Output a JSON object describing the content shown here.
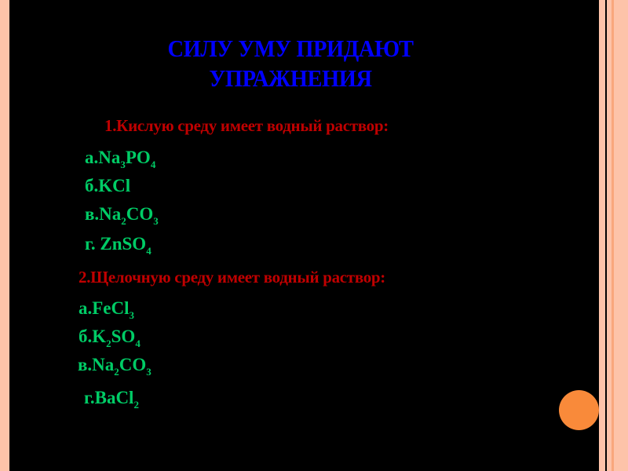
{
  "title": {
    "line1": "СИЛУ УМУ ПРИДАЮТ",
    "line2": "УПРАЖНЕНИЯ"
  },
  "question1": {
    "text": "1.Кислую среду имеет водный раствор:",
    "options": [
      {
        "prefix": "а.",
        "parts": [
          [
            "Na",
            ""
          ],
          [
            "3",
            "sub"
          ],
          [
            "PO",
            ""
          ],
          [
            "4",
            "sub"
          ]
        ]
      },
      {
        "prefix": "б.",
        "parts": [
          [
            "KCl",
            ""
          ]
        ]
      },
      {
        "prefix": "в.",
        "parts": [
          [
            "Na",
            ""
          ],
          [
            "2",
            "sub"
          ],
          [
            "CO",
            ""
          ],
          [
            "3",
            "sub"
          ]
        ]
      },
      {
        "prefix": "г. ",
        "parts": [
          [
            "ZnSO",
            ""
          ],
          [
            "4",
            "sub"
          ]
        ]
      }
    ]
  },
  "question2": {
    "text": "2.Щелочную среду имеет водный раствор:",
    "options": [
      {
        "prefix": "а.",
        "parts": [
          [
            "FeCl",
            ""
          ],
          [
            "3",
            "sub"
          ]
        ]
      },
      {
        "prefix": "б.",
        "parts": [
          [
            "K",
            ""
          ],
          [
            "2",
            "sub"
          ],
          [
            "SO",
            ""
          ],
          [
            "4",
            "sub"
          ]
        ]
      },
      {
        "prefix": "в.",
        "parts": [
          [
            "Na",
            ""
          ],
          [
            "2",
            "sub"
          ],
          [
            "CO",
            ""
          ],
          [
            "3",
            "sub"
          ]
        ]
      },
      {
        "prefix": "г.",
        "parts": [
          [
            "BaCl",
            ""
          ],
          [
            "2",
            "sub"
          ]
        ]
      }
    ]
  },
  "colors": {
    "title": "#0000ff",
    "question": "#c00000",
    "answer": "#00cc66",
    "background": "#000000",
    "frame": "#fdc3a9",
    "accent_circle": "#f98a3a"
  }
}
